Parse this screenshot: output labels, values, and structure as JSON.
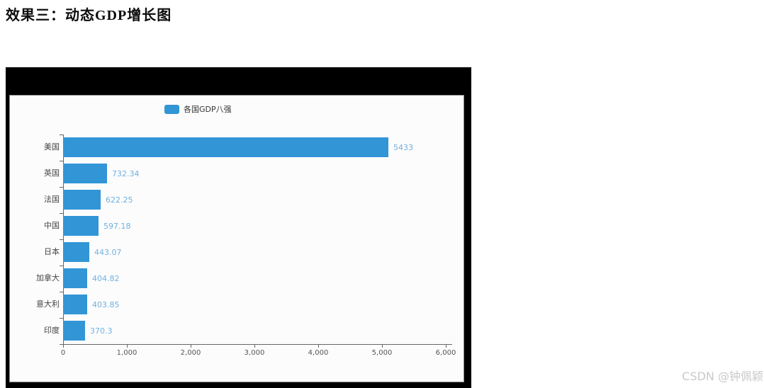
{
  "page": {
    "title": "效果三：动态GDP增长图",
    "watermark": "CSDN @钟佩颖"
  },
  "chart_data": {
    "type": "bar",
    "orientation": "horizontal",
    "legend": [
      "各国GDP八强"
    ],
    "legend_position": "top",
    "categories": [
      "美国",
      "英国",
      "法国",
      "中国",
      "日本",
      "加拿大",
      "意大利",
      "印度"
    ],
    "values": [
      5433,
      732.34,
      622.25,
      597.18,
      443.07,
      404.82,
      403.85,
      370.3
    ],
    "value_labels": [
      "5433",
      "732.34",
      "622.25",
      "597.18",
      "443.07",
      "404.82",
      "403.85",
      "370.3"
    ],
    "x_ticks": [
      "0",
      "1,000",
      "2,000",
      "3,000",
      "4,000",
      "5,000",
      "6,000"
    ],
    "xlim": [
      0,
      6000
    ],
    "xlabel": "",
    "ylabel": "",
    "grid": false,
    "bar_color": "#3295d6",
    "value_label_color": "#70b1de",
    "axis_color": "#666666"
  }
}
